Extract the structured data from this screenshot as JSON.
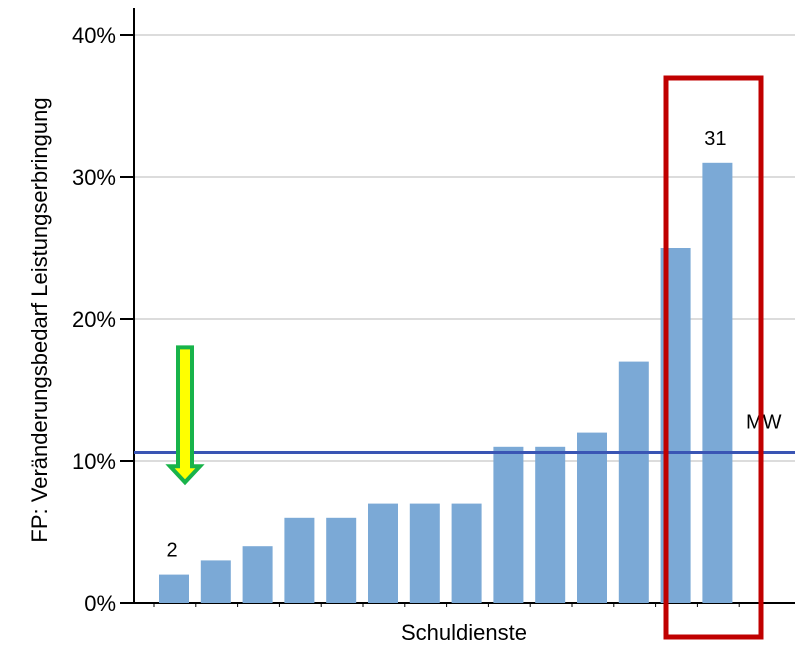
{
  "chart_data": {
    "type": "bar",
    "title": "",
    "xlabel": "Schuldienste",
    "ylabel": "FP: Veränderungsbedarf Leistungserbringung",
    "ylim": [
      0,
      42
    ],
    "yticks": [
      0,
      10,
      20,
      30,
      40
    ],
    "ytick_labels": [
      "0%",
      "10%",
      "20%",
      "30%",
      "40%"
    ],
    "grid": true,
    "bar_color": "#7BA9D6",
    "values": [
      2,
      3,
      4,
      6,
      6,
      7,
      7,
      7,
      11,
      11,
      12,
      17,
      25,
      31
    ],
    "data_labels": [
      {
        "index": 0,
        "text": "2"
      },
      {
        "index": 13,
        "text": "31"
      }
    ],
    "mean_line": {
      "value": 10.6,
      "label": "MW",
      "color": "#3A55B4"
    },
    "annotations": {
      "arrow": {
        "direction": "down",
        "from": 18,
        "to": 8.5,
        "fill": "#FFFF00",
        "stroke": "#18B34A"
      },
      "highlight_box": {
        "from_index": 12,
        "to_index": 13,
        "color": "#C00000"
      }
    }
  }
}
